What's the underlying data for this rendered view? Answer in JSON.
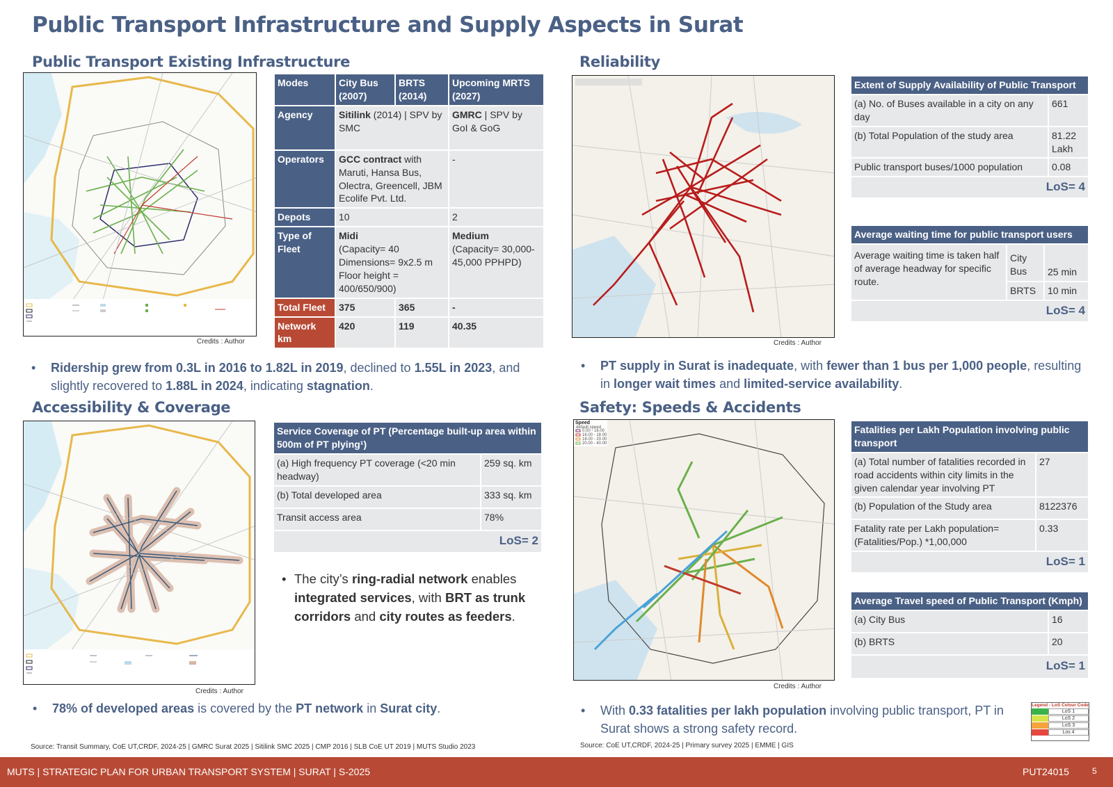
{
  "title": "Public Transport Infrastructure and Supply Aspects in Surat",
  "sections": {
    "infra": "Public Transport Existing Infrastructure",
    "reliability": "Reliability",
    "access": "Accessibility & Coverage",
    "safety": "Safety: Speeds & Accidents"
  },
  "credit": "Credits : Author",
  "infra_table": {
    "headers": [
      "Modes",
      "City Bus (2007)",
      "BRTS (2014)",
      "Upcoming MRTS (2027)"
    ],
    "agency": {
      "label": "Agency",
      "bus_bold": "Sitilink",
      "bus_rest": " (2014) | SPV by SMC",
      "mrts_bold": "GMRC",
      "mrts_rest": " | SPV by GoI & GoG"
    },
    "operators": {
      "label": "Operators",
      "bold": "GCC contract",
      "rest": " with Maruti, Hansa Bus, Olectra, Greencell, JBM Ecolife Pvt. Ltd.",
      "mrts": "-"
    },
    "depots": {
      "label": "Depots",
      "bus": "10",
      "mrts": "2"
    },
    "fleet_type": {
      "label": "Type of Fleet",
      "bus_bold": "Midi",
      "bus_rest": "(Capacity= 40 Dimensions= 9x2.5 m Floor height = 400/650/900)",
      "mrts_bold": "Medium",
      "mrts_rest": "(Capacity= 30,000-45,000 PPHPD)"
    },
    "total_fleet": {
      "label": "Total Fleet",
      "bus": "375",
      "brts": "365",
      "mrts": "-"
    },
    "network": {
      "label": "Network km",
      "bus": "420",
      "brts": "119",
      "mrts": "40.35"
    }
  },
  "supply_table": {
    "header": "Extent of Supply Availability of Public Transport",
    "rows": [
      {
        "label": "(a) No. of Buses available in a city on any day",
        "value": "661"
      },
      {
        "label": "(b) Total Population of the study area",
        "value": "81.22 Lakh"
      },
      {
        "label": "Public transport buses/1000 population",
        "value": "0.08"
      }
    ],
    "los": "LoS= 4"
  },
  "wait_table": {
    "header": "Average waiting time for public transport users",
    "desc": "Average waiting time is taken half of average headway for specific route.",
    "rows": [
      {
        "mode": "City Bus",
        "value": "25 min"
      },
      {
        "mode": "BRTS",
        "value": "10 min"
      }
    ],
    "los": "LoS= 4"
  },
  "coverage_table": {
    "header": "Service Coverage of PT (Percentage built-up area within 500m of PT plying¹)",
    "rows": [
      {
        "label": "(a) High frequency PT coverage (<20 min headway)",
        "value": "259 sq. km"
      },
      {
        "label": "(b) Total developed area",
        "value": "333 sq. km"
      },
      {
        "label": "Transit access area",
        "value": "78%"
      }
    ],
    "los": "LoS= 2"
  },
  "fatal_table": {
    "header": "Fatalities per Lakh Population involving public transport",
    "rows": [
      {
        "label": "(a) Total number of fatalities recorded in road accidents within city limits in the given calendar year involving PT",
        "value": "27"
      },
      {
        "label": "(b) Population of the Study area",
        "value": "8122376"
      },
      {
        "label": "Fatality rate per Lakh population= (Fatalities/Pop.) *1,00,000",
        "value": "0.33"
      }
    ],
    "los": "LoS= 1"
  },
  "speed_table": {
    "header": "Average Travel speed of Public Transport (Kmph)",
    "rows": [
      {
        "label": "(a) City Bus",
        "value": "16"
      },
      {
        "label": "(b) BRTS",
        "value": "20"
      }
    ],
    "los": "LoS= 1"
  },
  "bullets": {
    "b1": {
      "p1": "Ridership grew from 0.3L in 2016 to 1.82L in 2019",
      "p2": ", declined to ",
      "p3": "1.55L in 2023",
      "p4": ", and slightly recovered to ",
      "p5": "1.88L in 2024",
      "p6": ", indicating ",
      "p7": "stagnation",
      "p8": "."
    },
    "b2": {
      "p1": "PT supply in Surat is inadequate",
      "p2": ", with ",
      "p3": "fewer than 1 bus per 1,000 people",
      "p4": ", resulting in ",
      "p5": "longer wait times",
      "p6": " and ",
      "p7": "limited-service availability",
      "p8": "."
    },
    "b3": {
      "p1": "The city’s ",
      "p2": "ring-radial network",
      "p3": " enables ",
      "p4": "integrated services",
      "p5": ", with ",
      "p6": "BRT as trunk corridors",
      "p7": " and ",
      "p8": "city routes as feeders",
      "p9": "."
    },
    "b4": {
      "p1": "78% of developed areas",
      "p2": " is covered by the ",
      "p3": "PT network",
      "p4": " in ",
      "p5": "Surat city",
      "p6": "."
    },
    "b5": {
      "p1": "With ",
      "p2": "0.33 fatalities per lakh population",
      "p3": " involving public transport, PT in Surat shows a strong safety record."
    }
  },
  "sources": {
    "left": "Source: Transit Summary, CoE UT,CRDF, 2024-25 | GMRC Surat 2025 | Sitilink SMC 2025 | CMP 2016 | SLB CoE UT 2019 | MUTS Studio 2023",
    "right": "Source: CoE UT,CRDF, 2024-25 | Primary survey 2025 | EMME | GIS"
  },
  "footer": {
    "left": "MUTS | STRATEGIC PLAN FOR URBAN TRANSPORT SYSTEM | SURAT | S-2025",
    "code": "PUT24015",
    "page": "5"
  },
  "los_legend": {
    "title": "Legend - LoS Colour Code",
    "items": [
      "LoS 1",
      "LoS 2",
      "LoS 3",
      "Los 4"
    ],
    "colors": [
      "#3cb34a",
      "#d9e24a",
      "#f3a43a",
      "#e5483f"
    ]
  },
  "speed_legend": {
    "title": "Speed",
    "sub": "default speed",
    "items": [
      "0.00 - 16.00",
      "16.00 - 18.00",
      "18.00 - 20.00",
      "20.00 - 40.00"
    ]
  },
  "colors": {
    "navy": "#4a6085",
    "rust": "#b84a35",
    "cell": "#e7e8ea"
  }
}
